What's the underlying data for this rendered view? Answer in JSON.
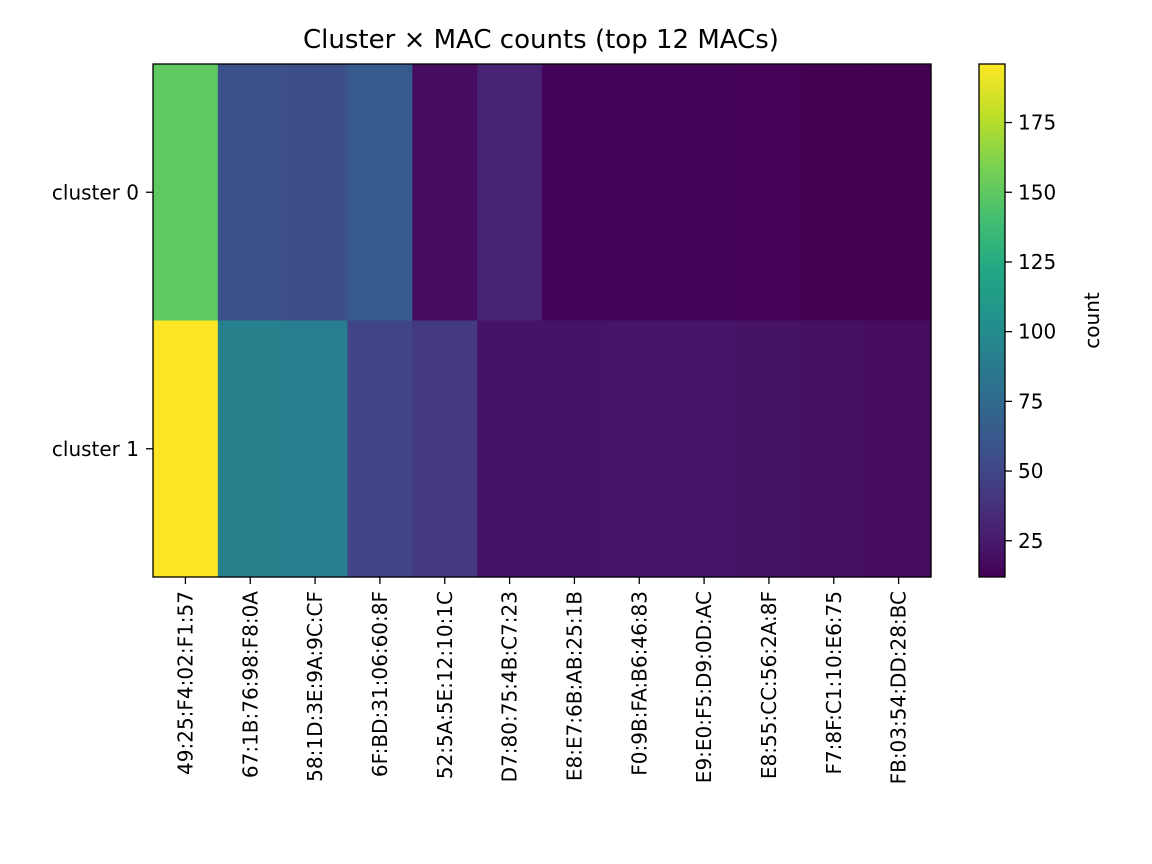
{
  "chart_data": {
    "type": "heatmap",
    "title": "Cluster × MAC counts (top 12 MACs)",
    "xlabel": "",
    "ylabel": "",
    "rows": [
      "cluster 0",
      "cluster 1"
    ],
    "columns": [
      "49:25:F4:02:F1:57",
      "67:1B:76:98:F8:0A",
      "58:1D:3E:9A:9C:CF",
      "6F:BD:31:06:60:8F",
      "52:5A:5E:12:10:1C",
      "D7:80:75:4B:C7:23",
      "E8:E7:6B:AB:25:1B",
      "F0:9B:FA:B6:46:83",
      "E9:E0:F5:D9:0D:AC",
      "E8:55:CC:56:2A:8F",
      "F7:8F:C1:10:E6:75",
      "FB:03:54:DD:28:BC"
    ],
    "values": [
      [
        150,
        57,
        56,
        64,
        18,
        30,
        14,
        14,
        14,
        13,
        12,
        12
      ],
      [
        196,
        92,
        90,
        49,
        43,
        22,
        22,
        23,
        23,
        21,
        20,
        18
      ]
    ],
    "colorscale": "viridis",
    "vmin": 12,
    "vmax": 196,
    "colorbar": {
      "label": "count",
      "ticks": [
        25,
        50,
        75,
        100,
        125,
        150,
        175
      ]
    },
    "grid": false
  }
}
